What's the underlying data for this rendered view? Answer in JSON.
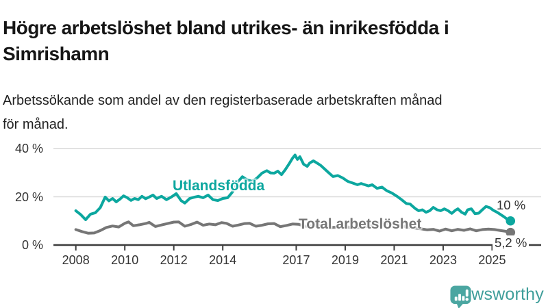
{
  "header": {
    "title": "Högre arbetslöshet bland utrikes- än inrikesfödda i Simrishamn",
    "subtitle": "Arbetssökande som andel av den registerbaserade arbetskraften månad för månad."
  },
  "chart_data": {
    "type": "line",
    "title": "Högre arbetslöshet bland utrikes- än inrikesfödda i Simrishamn",
    "unit": "%",
    "grid": "horizontal",
    "legend_position": "inline-labels",
    "xlim": [
      2007.9,
      2026.1
    ],
    "ylim": [
      0,
      42
    ],
    "y_ticks": [
      {
        "value": 0,
        "label": "0 %"
      },
      {
        "value": 20,
        "label": "20 %"
      },
      {
        "value": 40,
        "label": "40 %"
      }
    ],
    "x_ticks": [
      {
        "year": 2008,
        "label": "2008"
      },
      {
        "year": 2010,
        "label": "2010"
      },
      {
        "year": 2012,
        "label": "2012"
      },
      {
        "year": 2014,
        "label": "2014"
      },
      {
        "year": 2017,
        "label": "2017"
      },
      {
        "year": 2019,
        "label": "2019"
      },
      {
        "year": 2021,
        "label": "2021"
      },
      {
        "year": 2023,
        "label": "2023"
      },
      {
        "year": 2025,
        "label": "2025"
      }
    ],
    "series": [
      {
        "name": "Total arbetslöshet",
        "color": "#767676",
        "end_label": "5,2 %",
        "end_value": 5.2,
        "points": [
          [
            2008.0,
            6.4
          ],
          [
            2008.25,
            5.6
          ],
          [
            2008.5,
            4.9
          ],
          [
            2008.75,
            5.0
          ],
          [
            2009.0,
            6.0
          ],
          [
            2009.25,
            7.3
          ],
          [
            2009.5,
            7.9
          ],
          [
            2009.75,
            7.5
          ],
          [
            2010.0,
            9.0
          ],
          [
            2010.15,
            9.6
          ],
          [
            2010.35,
            8.0
          ],
          [
            2010.6,
            8.4
          ],
          [
            2010.85,
            8.9
          ],
          [
            2011.0,
            9.4
          ],
          [
            2011.25,
            7.7
          ],
          [
            2011.5,
            8.3
          ],
          [
            2011.75,
            8.9
          ],
          [
            2012.0,
            9.5
          ],
          [
            2012.2,
            9.6
          ],
          [
            2012.45,
            7.8
          ],
          [
            2012.7,
            8.5
          ],
          [
            2012.95,
            9.5
          ],
          [
            2013.2,
            8.2
          ],
          [
            2013.45,
            8.7
          ],
          [
            2013.7,
            8.4
          ],
          [
            2013.95,
            9.3
          ],
          [
            2014.15,
            9.0
          ],
          [
            2014.4,
            7.8
          ],
          [
            2014.65,
            8.3
          ],
          [
            2014.9,
            8.9
          ],
          [
            2015.1,
            9.0
          ],
          [
            2015.35,
            7.8
          ],
          [
            2015.6,
            8.2
          ],
          [
            2015.85,
            8.8
          ],
          [
            2016.1,
            8.9
          ],
          [
            2016.35,
            7.6
          ],
          [
            2016.6,
            8.1
          ],
          [
            2016.85,
            8.7
          ],
          [
            2017.1,
            8.6
          ],
          [
            2017.35,
            7.8
          ],
          [
            2017.6,
            7.9
          ],
          [
            2017.85,
            8.1
          ],
          [
            2018.1,
            8.0
          ],
          [
            2018.35,
            7.2
          ],
          [
            2018.6,
            7.4
          ],
          [
            2018.85,
            7.7
          ],
          [
            2019.1,
            7.5
          ],
          [
            2019.35,
            7.1
          ],
          [
            2019.6,
            7.3
          ],
          [
            2019.85,
            7.6
          ],
          [
            2020.1,
            8.0
          ],
          [
            2020.35,
            9.2
          ],
          [
            2020.6,
            9.3
          ],
          [
            2020.85,
            8.9
          ],
          [
            2021.1,
            8.5
          ],
          [
            2021.35,
            7.9
          ],
          [
            2021.6,
            7.4
          ],
          [
            2021.85,
            7.0
          ],
          [
            2022.1,
            6.7
          ],
          [
            2022.35,
            6.3
          ],
          [
            2022.6,
            6.5
          ],
          [
            2022.85,
            5.8
          ],
          [
            2023.1,
            6.6
          ],
          [
            2023.35,
            5.9
          ],
          [
            2023.6,
            6.5
          ],
          [
            2023.85,
            6.1
          ],
          [
            2024.1,
            6.7
          ],
          [
            2024.35,
            5.9
          ],
          [
            2024.6,
            6.4
          ],
          [
            2024.85,
            6.6
          ],
          [
            2025.1,
            6.4
          ],
          [
            2025.35,
            6.0
          ],
          [
            2025.55,
            5.7
          ],
          [
            2025.75,
            5.2
          ]
        ]
      },
      {
        "name": "Utlandsfödda",
        "color": "#0ca79f",
        "end_label": "10 %",
        "end_value": 10,
        "points": [
          [
            2008.0,
            14.2
          ],
          [
            2008.2,
            12.6
          ],
          [
            2008.4,
            10.5
          ],
          [
            2008.6,
            12.8
          ],
          [
            2008.8,
            13.4
          ],
          [
            2009.0,
            15.5
          ],
          [
            2009.2,
            19.9
          ],
          [
            2009.35,
            18.3
          ],
          [
            2009.5,
            19.3
          ],
          [
            2009.65,
            17.9
          ],
          [
            2009.8,
            19.0
          ],
          [
            2009.95,
            20.4
          ],
          [
            2010.1,
            19.6
          ],
          [
            2010.25,
            18.5
          ],
          [
            2010.4,
            19.3
          ],
          [
            2010.55,
            18.8
          ],
          [
            2010.7,
            20.2
          ],
          [
            2010.85,
            19.2
          ],
          [
            2011.0,
            19.9
          ],
          [
            2011.15,
            20.7
          ],
          [
            2011.3,
            19.3
          ],
          [
            2011.5,
            20.2
          ],
          [
            2011.7,
            18.8
          ],
          [
            2011.9,
            19.9
          ],
          [
            2012.1,
            21.3
          ],
          [
            2012.3,
            18.4
          ],
          [
            2012.45,
            17.4
          ],
          [
            2012.65,
            19.3
          ],
          [
            2012.85,
            19.9
          ],
          [
            2013.0,
            20.2
          ],
          [
            2013.2,
            19.6
          ],
          [
            2013.4,
            20.7
          ],
          [
            2013.6,
            18.8
          ],
          [
            2013.8,
            18.4
          ],
          [
            2014.0,
            19.3
          ],
          [
            2014.2,
            19.6
          ],
          [
            2014.4,
            22.0
          ],
          [
            2014.6,
            26.0
          ],
          [
            2014.8,
            28.3
          ],
          [
            2015.0,
            27.0
          ],
          [
            2015.2,
            26.4
          ],
          [
            2015.4,
            27.8
          ],
          [
            2015.6,
            29.8
          ],
          [
            2015.8,
            30.8
          ],
          [
            2015.95,
            29.9
          ],
          [
            2016.1,
            29.8
          ],
          [
            2016.25,
            30.6
          ],
          [
            2016.4,
            29.2
          ],
          [
            2016.55,
            31.2
          ],
          [
            2016.7,
            33.5
          ],
          [
            2016.85,
            36.0
          ],
          [
            2016.95,
            37.3
          ],
          [
            2017.05,
            35.5
          ],
          [
            2017.15,
            36.6
          ],
          [
            2017.3,
            33.5
          ],
          [
            2017.45,
            32.6
          ],
          [
            2017.55,
            34.0
          ],
          [
            2017.7,
            34.9
          ],
          [
            2017.85,
            34.0
          ],
          [
            2018.0,
            33.0
          ],
          [
            2018.15,
            31.6
          ],
          [
            2018.3,
            30.2
          ],
          [
            2018.5,
            28.4
          ],
          [
            2018.7,
            28.8
          ],
          [
            2018.9,
            27.8
          ],
          [
            2019.1,
            26.4
          ],
          [
            2019.3,
            25.7
          ],
          [
            2019.5,
            25.0
          ],
          [
            2019.65,
            25.5
          ],
          [
            2019.8,
            25.0
          ],
          [
            2019.95,
            24.5
          ],
          [
            2020.1,
            25.0
          ],
          [
            2020.3,
            23.5
          ],
          [
            2020.5,
            24.0
          ],
          [
            2020.7,
            22.5
          ],
          [
            2020.9,
            21.6
          ],
          [
            2021.1,
            20.3
          ],
          [
            2021.3,
            18.8
          ],
          [
            2021.5,
            17.2
          ],
          [
            2021.65,
            17.0
          ],
          [
            2021.85,
            15.2
          ],
          [
            2022.0,
            14.2
          ],
          [
            2022.15,
            14.6
          ],
          [
            2022.3,
            13.6
          ],
          [
            2022.45,
            14.2
          ],
          [
            2022.6,
            15.6
          ],
          [
            2022.75,
            14.6
          ],
          [
            2022.9,
            14.2
          ],
          [
            2023.05,
            15.0
          ],
          [
            2023.2,
            14.2
          ],
          [
            2023.35,
            13.1
          ],
          [
            2023.5,
            14.4
          ],
          [
            2023.6,
            15.0
          ],
          [
            2023.75,
            13.6
          ],
          [
            2023.9,
            12.8
          ],
          [
            2024.0,
            14.6
          ],
          [
            2024.15,
            15.0
          ],
          [
            2024.3,
            13.0
          ],
          [
            2024.45,
            13.2
          ],
          [
            2024.6,
            14.6
          ],
          [
            2024.75,
            16.0
          ],
          [
            2024.9,
            15.5
          ],
          [
            2025.05,
            14.4
          ],
          [
            2025.2,
            13.6
          ],
          [
            2025.35,
            12.6
          ],
          [
            2025.5,
            11.6
          ],
          [
            2025.65,
            10.4
          ],
          [
            2025.75,
            10.0
          ]
        ]
      }
    ],
    "colors": {
      "grid": "#d9d9d9",
      "axis": "#3d3d3d",
      "tick_text": "#333333"
    }
  },
  "branding": {
    "logo_text": "Newsworthy",
    "logo_icon": "bar-chart-speech-bubble",
    "icon_color": "#4ba6a1",
    "text_color": "#3f9e9a"
  }
}
